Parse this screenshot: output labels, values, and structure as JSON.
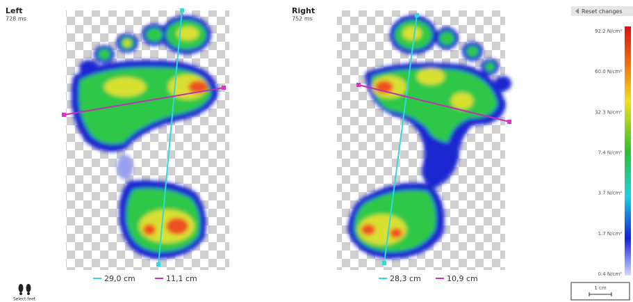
{
  "left": {
    "title": "Left",
    "duration": "728 ms",
    "measurements": [
      "29,0 cm",
      "11,1 cm"
    ]
  },
  "right": {
    "title": "Right",
    "duration": "752 ms",
    "measurements": [
      "28,3 cm",
      "10,9 cm"
    ]
  },
  "toolbar": {
    "reset": "Reset changes"
  },
  "legend": {
    "labels": [
      "92.2 N/cm²",
      "60.0 N/cm²",
      "32.3 N/cm²",
      "7.4 N/cm²",
      "3.7 N/cm²",
      "1.7 N/cm²",
      "0.4 N/cm²"
    ]
  },
  "scale": {
    "label": "1 cm"
  },
  "select_feet": {
    "label": "Select feet"
  }
}
